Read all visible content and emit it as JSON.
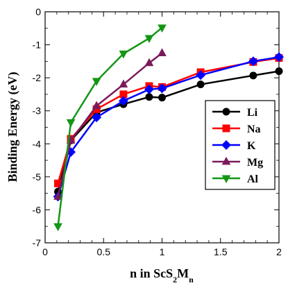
{
  "chart_data": {
    "type": "line",
    "title": "",
    "xlabel_parts": [
      "n in ScS",
      "2",
      "M",
      "n"
    ],
    "ylabel": "Binding Energy (eV)",
    "xlim": [
      0,
      2
    ],
    "ylim": [
      -7,
      0
    ],
    "x_ticks": [
      0,
      0.5,
      1,
      1.5,
      2
    ],
    "x_tick_labels": [
      "0",
      "0.5",
      "1",
      "1.5",
      "2"
    ],
    "y_ticks": [
      0,
      -1,
      -2,
      -3,
      -4,
      -5,
      -6,
      -7
    ],
    "y_tick_labels": [
      "0",
      "-1",
      "-2",
      "-3",
      "-4",
      "-5",
      "-6",
      "-7"
    ],
    "legend_position": "right",
    "grid": false,
    "series": [
      {
        "name": "Li",
        "color": "#000000",
        "marker": "circle",
        "x": [
          0.11,
          0.22,
          0.44,
          0.67,
          0.89,
          1.0,
          1.33,
          1.78,
          2.0
        ],
        "y": [
          -5.45,
          -3.9,
          -3.05,
          -2.8,
          -2.58,
          -2.6,
          -2.2,
          -1.93,
          -1.8
        ]
      },
      {
        "name": "Na",
        "color": "#ff0000",
        "marker": "square",
        "x": [
          0.11,
          0.22,
          0.44,
          0.67,
          0.89,
          1.0,
          1.33,
          1.78,
          2.0
        ],
        "y": [
          -5.2,
          -3.85,
          -2.95,
          -2.5,
          -2.25,
          -2.28,
          -1.83,
          -1.52,
          -1.4
        ]
      },
      {
        "name": "K",
        "color": "#0000ff",
        "marker": "diamond",
        "x": [
          0.11,
          0.22,
          0.44,
          0.67,
          0.89,
          1.0,
          1.33,
          1.78,
          2.0
        ],
        "y": [
          -5.6,
          -4.25,
          -3.2,
          -2.7,
          -2.35,
          -2.32,
          -1.92,
          -1.5,
          -1.37
        ]
      },
      {
        "name": "Mg",
        "color": "#7a1a5a",
        "marker": "triangle-up",
        "x": [
          0.11,
          0.22,
          0.44,
          0.67,
          0.89,
          1.0
        ],
        "y": [
          -5.6,
          -3.9,
          -2.85,
          -2.2,
          -1.55,
          -1.25
        ]
      },
      {
        "name": "Al",
        "color": "#149614",
        "marker": "triangle-down",
        "x": [
          0.11,
          0.22,
          0.44,
          0.67,
          0.89,
          1.0
        ],
        "y": [
          -6.5,
          -3.35,
          -2.1,
          -1.27,
          -0.8,
          -0.48
        ]
      }
    ]
  }
}
